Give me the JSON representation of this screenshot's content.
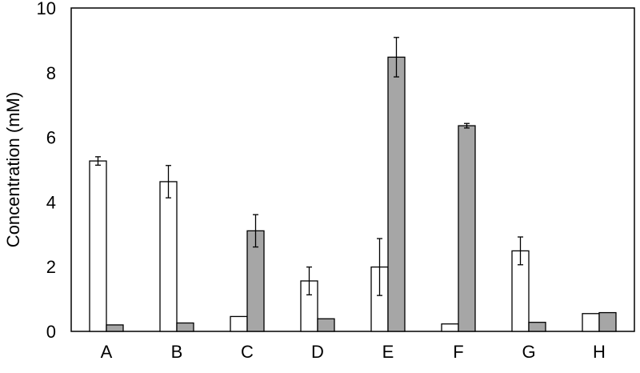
{
  "chart_data": {
    "type": "bar",
    "title": "",
    "xlabel": "",
    "ylabel": "Concentration (mM)",
    "ylim": [
      0,
      10
    ],
    "yticks": [
      "0",
      "2",
      "4",
      "6",
      "8",
      "10"
    ],
    "grid": false,
    "legend": "none",
    "categories": [
      "A",
      "B",
      "C",
      "D",
      "E",
      "F",
      "G",
      "H"
    ],
    "series": [
      {
        "color": "#ffffff",
        "values": [
          5.27,
          4.63,
          0.46,
          1.56,
          1.99,
          0.23,
          2.49,
          0.55
        ],
        "errors": [
          0.13,
          0.5,
          0.02,
          0.43,
          0.88,
          0.02,
          0.43,
          0.02
        ]
      },
      {
        "color": "#a6a6a6",
        "values": [
          0.2,
          0.26,
          3.11,
          0.39,
          8.48,
          6.36,
          0.28,
          0.58
        ],
        "errors": [
          0.02,
          0.02,
          0.5,
          0.02,
          0.61,
          0.07,
          0.02,
          0.02
        ]
      }
    ]
  }
}
